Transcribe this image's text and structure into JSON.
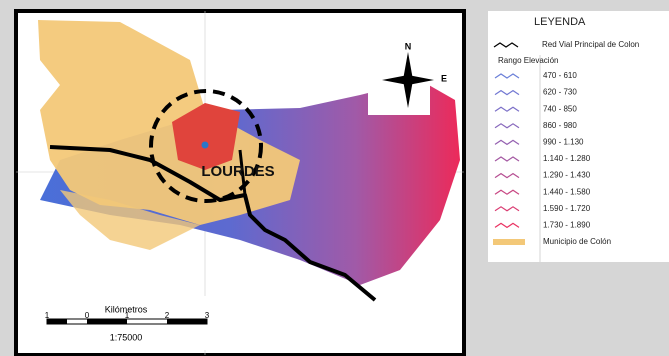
{
  "map": {
    "place_label": "LOURDES",
    "compass": {
      "north": "N",
      "east": "E"
    },
    "scale": {
      "title": "Kilómetros",
      "ticks": [
        "1",
        "0",
        "1",
        "2",
        "3"
      ],
      "ratio": "1:75000"
    }
  },
  "legend": {
    "title": "LEYENDA",
    "road": "Red Vial Principal de Colon",
    "range_title": "Rango Elevación",
    "items": [
      {
        "label": "470 - 610",
        "color": "#6a7fd8"
      },
      {
        "label": "620 - 730",
        "color": "#7278d2"
      },
      {
        "label": "740 - 850",
        "color": "#7c70c8"
      },
      {
        "label": "860 - 980",
        "color": "#8868bc"
      },
      {
        "label": "990 - 1.130",
        "color": "#9460b0"
      },
      {
        "label": "1.140 - 1.280",
        "color": "#a458a2"
      },
      {
        "label": "1.290 - 1.430",
        "color": "#b64e92"
      },
      {
        "label": "1.440 - 1.580",
        "color": "#c84682"
      },
      {
        "label": "1.590 - 1.720",
        "color": "#da3c72"
      },
      {
        "label": "1.730 - 1.890",
        "color": "#ea3262"
      }
    ],
    "municipio": "Municipio de Colón",
    "municipio_color": "#f3c878"
  }
}
